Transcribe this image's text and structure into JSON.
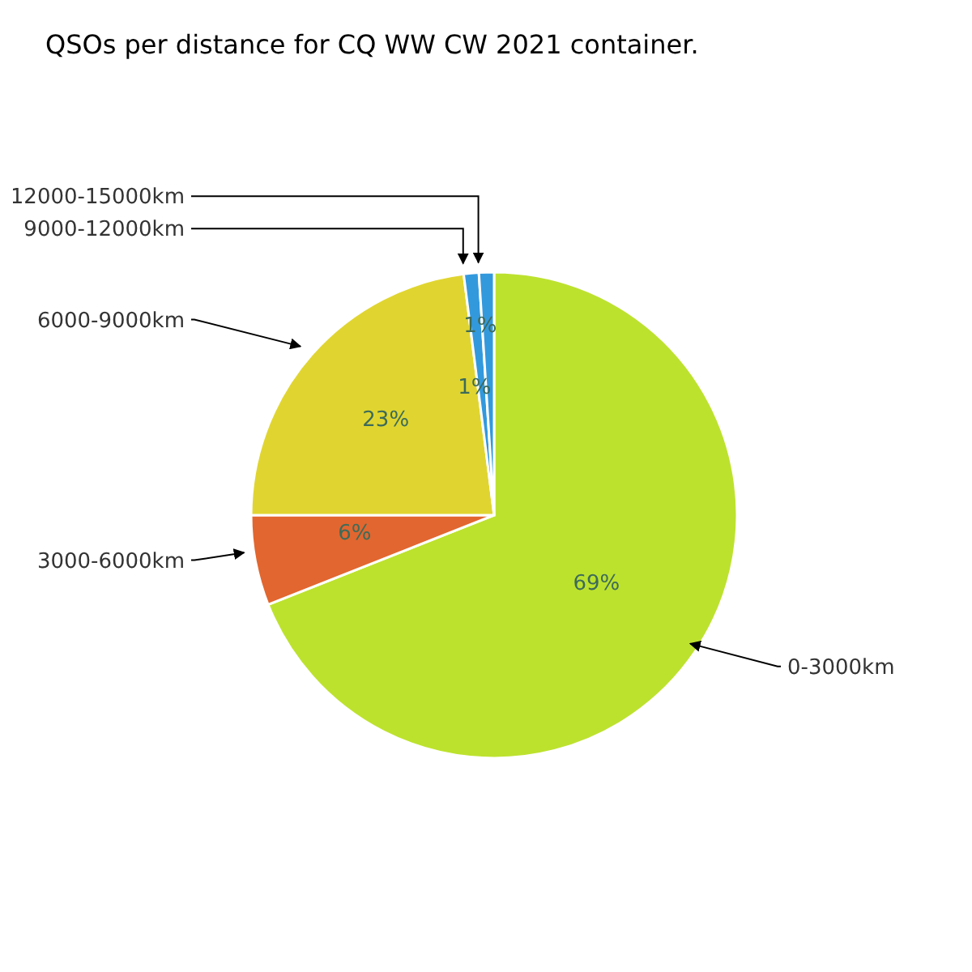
{
  "chart_data": {
    "type": "pie",
    "title": "QSOs per distance for CQ WW CW 2021 container.",
    "categories": [
      "0-3000km",
      "3000-6000km",
      "6000-9000km",
      "9000-12000km",
      "12000-15000km"
    ],
    "values": [
      69,
      6,
      23,
      1,
      1
    ],
    "colors": [
      "#bde22e",
      "#e2662f",
      "#e0d530",
      "#3399dd",
      "#3399dd"
    ],
    "value_labels": [
      "69%",
      "6%",
      "23%",
      "1%",
      "1%"
    ]
  }
}
